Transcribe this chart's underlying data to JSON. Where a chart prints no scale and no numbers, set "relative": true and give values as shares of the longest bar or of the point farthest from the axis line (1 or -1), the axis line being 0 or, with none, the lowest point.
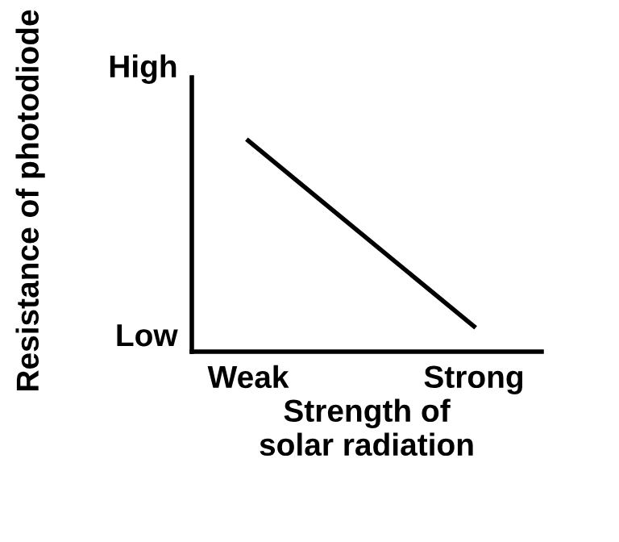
{
  "chart_data": {
    "type": "line",
    "xlabel": "Strength of\nsolar radiation",
    "ylabel": "Resistance of photodiode",
    "categories": [
      "Weak",
      "Strong"
    ],
    "relative": true,
    "series": [
      {
        "color": "#000000",
        "values": [
          1,
          0.12
        ]
      }
    ],
    "annotations": [
      "High",
      "Low"
    ],
    "grid": false,
    "legend": false,
    "marker": "none",
    "line_style": "solid"
  }
}
